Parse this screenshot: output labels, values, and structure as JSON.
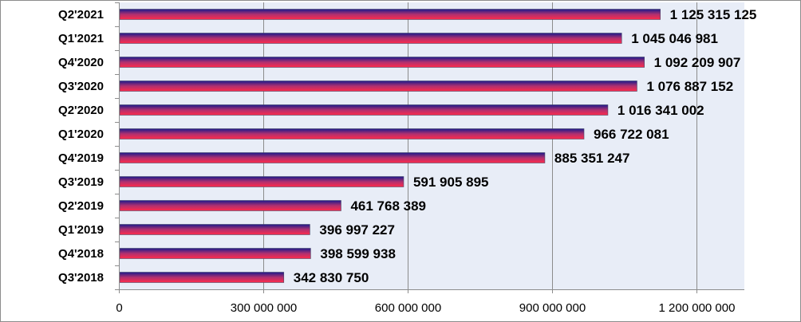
{
  "chart_data": {
    "type": "bar",
    "orientation": "horizontal",
    "categories": [
      "Q2'2021",
      "Q1'2021",
      "Q4'2020",
      "Q3'2020",
      "Q2'2020",
      "Q1'2020",
      "Q4'2019",
      "Q3'2019",
      "Q2'2019",
      "Q1'2019",
      "Q4'2018",
      "Q3'2018"
    ],
    "values": [
      1125315125,
      1045046981,
      1092209907,
      1076887152,
      1016341002,
      966722081,
      885351247,
      591905895,
      461768389,
      396997227,
      398599938,
      342830750
    ],
    "value_labels": [
      "1 125 315 125",
      "1 045 046 981",
      "1 092 209 907",
      "1 076 887 152",
      "1 016 341 002",
      "966 722 081",
      "885 351 247",
      "591 905 895",
      "461 768 389",
      "396 997 227",
      "398 599 938",
      "342 830 750"
    ],
    "x_ticks": [
      0,
      300000000,
      600000000,
      900000000,
      1200000000
    ],
    "x_tick_labels": [
      "0",
      "300 000 000",
      "600 000 000",
      "900 000 000",
      "1 200 000 000"
    ],
    "xlim": [
      0,
      1300000000
    ],
    "title": "",
    "xlabel": "",
    "ylabel": "",
    "grid": "vertical",
    "legend": "none",
    "colors": {
      "plot_background": "#e8edf7",
      "gridline": "#8c8c8c",
      "bar_top": "#1a1a8c",
      "bar_bottom": "#ff2a4a",
      "bar_outline": "#4a4a6a"
    }
  }
}
